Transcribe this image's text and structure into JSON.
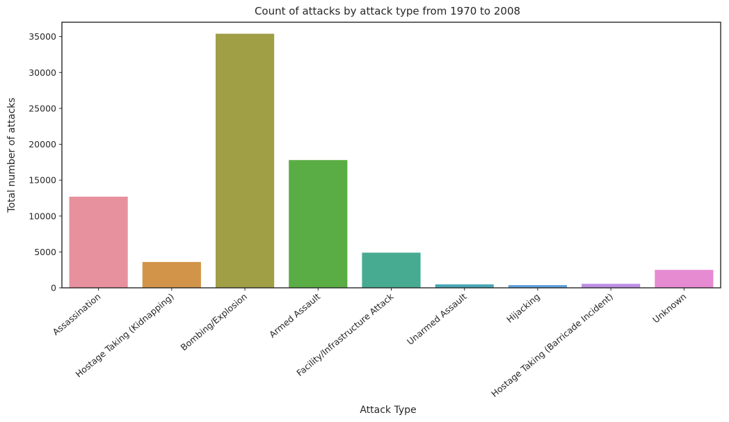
{
  "chart_data": {
    "type": "bar",
    "title": "Count of attacks by attack type from 1970 to 2008",
    "xlabel": "Attack Type",
    "ylabel": "Total number of attacks",
    "ylim": [
      0,
      37000
    ],
    "yticks": [
      0,
      5000,
      10000,
      15000,
      20000,
      25000,
      30000,
      35000
    ],
    "grid": false,
    "categories": [
      "Assassination",
      "Hostage Taking (Kidnapping)",
      "Bombing/Explosion",
      "Armed Assault",
      "Facility/Infrastructure Attack",
      "Unarmed Assault",
      "Hijacking",
      "Hostage Taking (Barricade Incident)",
      "Unknown"
    ],
    "values": [
      12700,
      3600,
      35400,
      17800,
      4900,
      480,
      380,
      560,
      2500
    ],
    "colors": [
      "#e8919e",
      "#d19448",
      "#a09f46",
      "#5aad44",
      "#47ab91",
      "#48a7b6",
      "#5ea2dd",
      "#be8fe4",
      "#e68bd2"
    ]
  }
}
